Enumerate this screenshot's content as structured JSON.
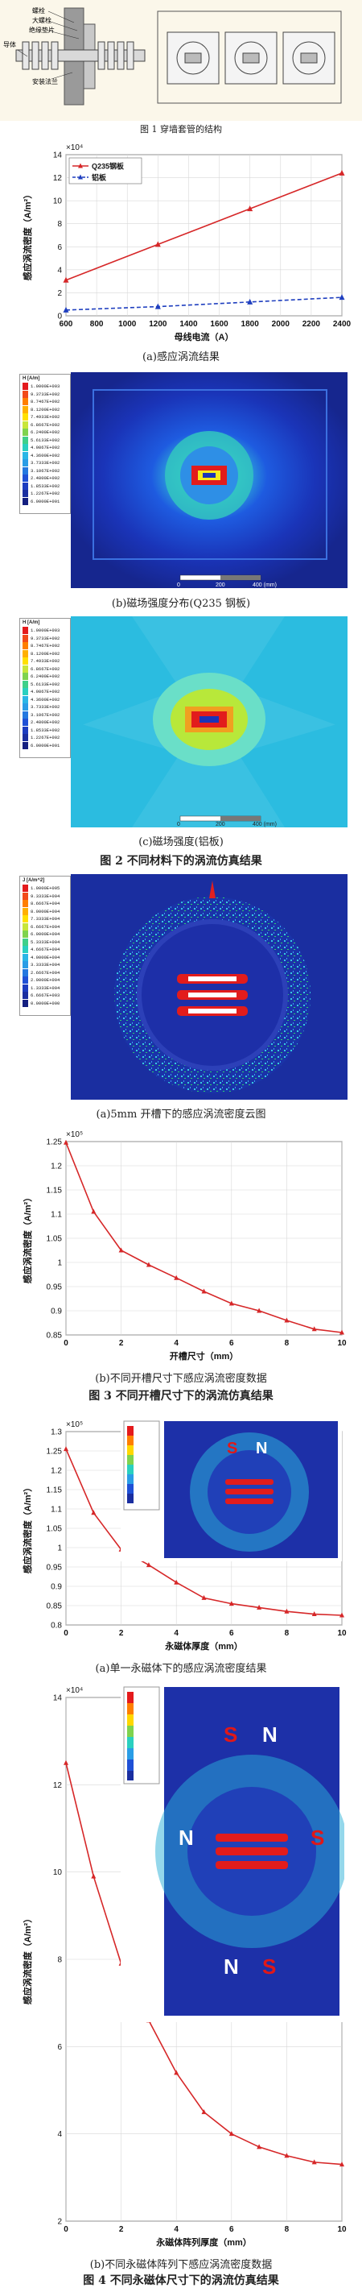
{
  "fig1": {
    "labels": [
      "螺栓",
      "大螺栓",
      "绝缘垫片",
      "导体",
      "安装法兰"
    ],
    "caption": "图 1 穿墙套管的结构"
  },
  "fig2": {
    "caption_a": "(a)感应涡流结果",
    "caption_b": "(b)磁场强度分布(Q235 钢板)",
    "caption_c": "(c)磁场强度(铝板)",
    "caption": "图 2 不同材料下的涡流仿真结果",
    "legend_b": {
      "unit": "H [A/m]",
      "values": [
        "1.0000E+003",
        "9.3733E+002",
        "8.7467E+002",
        "8.1200E+002",
        "7.4933E+002",
        "6.8667E+002",
        "6.2400E+002",
        "5.6133E+002",
        "4.9867E+002",
        "4.3600E+002",
        "3.7333E+002",
        "3.1067E+002",
        "2.4800E+002",
        "1.8533E+002",
        "1.2267E+002",
        "6.0000E+001"
      ]
    },
    "legend_c": {
      "unit": "H [A/m]",
      "values": [
        "1.0000E+003",
        "9.3733E+002",
        "8.7467E+002",
        "8.1200E+002",
        "7.4933E+002",
        "6.8667E+002",
        "6.2400E+002",
        "5.6133E+002",
        "4.9867E+002",
        "4.3600E+002",
        "3.7333E+002",
        "3.1067E+002",
        "2.4800E+002",
        "1.8533E+002",
        "1.2267E+002",
        "6.0000E+001"
      ]
    },
    "scalebar": {
      "start": "0",
      "mid": "200",
      "end": "400 (mm)"
    }
  },
  "fig3": {
    "caption_a": "(a)5mm 开槽下的感应涡流密度云图",
    "caption_b": "(b)不同开槽尺寸下感应涡流密度数据",
    "caption": "图 3 不同开槽尺寸下的涡流仿真结果",
    "legend": {
      "unit": "J [A/m^2]",
      "values": [
        "1.0000E+005",
        "9.3333E+004",
        "8.6667E+004",
        "8.0000E+004",
        "7.3333E+004",
        "6.6667E+004",
        "6.0000E+004",
        "5.3333E+004",
        "4.6667E+004",
        "4.0000E+004",
        "3.3333E+004",
        "2.6667E+004",
        "2.0000E+004",
        "1.3333E+004",
        "6.6667E+003",
        "0.0000E+000"
      ]
    }
  },
  "fig4": {
    "caption_a": "(a)单一永磁体下的感应涡流密度结果",
    "caption_b": "(b)不同永磁体阵列下感应涡流密度数据",
    "caption": "图 4 不同永磁体尺寸下的涡流仿真结果",
    "magnets_a": [
      "S",
      "N"
    ],
    "magnets_b": [
      "S",
      "N",
      "N",
      "S",
      "N",
      "S"
    ]
  },
  "chart_data": [
    {
      "type": "line",
      "xlabel": "母线电流（A）",
      "ylabel": "感应涡流密度（A/m²）",
      "y_exponent": "×10⁴",
      "x": [
        600,
        1200,
        1800,
        2400
      ],
      "xlim": [
        600,
        2400
      ],
      "ylim": [
        0,
        14
      ],
      "xticks": [
        "600",
        "800",
        "1000",
        "1200",
        "1400",
        "1600",
        "1800",
        "2000",
        "2200",
        "2400"
      ],
      "yticks": [
        "0",
        "2",
        "4",
        "6",
        "8",
        "10",
        "12",
        "14"
      ],
      "grid": true,
      "legend_position": "top-left",
      "series": [
        {
          "name": "Q235钢板",
          "values": [
            3.1,
            6.2,
            9.3,
            12.4
          ],
          "color": "#d62728"
        },
        {
          "name": "铝板",
          "values": [
            0.5,
            0.8,
            1.2,
            1.6
          ],
          "color": "#1f3fbf"
        }
      ]
    },
    {
      "type": "line",
      "xlabel": "开槽尺寸（mm）",
      "ylabel": "感应涡流密度（A/m²）",
      "y_exponent": "×10⁵",
      "x": [
        0,
        1,
        2,
        3,
        4,
        5,
        6,
        7,
        8,
        9,
        10
      ],
      "xlim": [
        0,
        10
      ],
      "ylim": [
        0.85,
        1.25
      ],
      "xticks": [
        "0",
        "2",
        "4",
        "6",
        "8",
        "10"
      ],
      "yticks": [
        "0.85",
        "0.9",
        "0.95",
        "1",
        "1.05",
        "1.1",
        "1.15",
        "1.2",
        "1.25"
      ],
      "grid": true,
      "series": [
        {
          "values": [
            1.248,
            1.105,
            1.025,
            0.995,
            0.968,
            0.94,
            0.915,
            0.9,
            0.88,
            0.862,
            0.855
          ],
          "color": "#d62728"
        }
      ]
    },
    {
      "type": "line",
      "xlabel": "永磁体厚度（mm）",
      "ylabel": "感应涡流密度（A/m²）",
      "y_exponent": "×10⁵",
      "x": [
        0,
        1,
        2,
        3,
        4,
        5,
        6,
        7,
        8,
        9,
        10
      ],
      "xlim": [
        0,
        10
      ],
      "ylim": [
        0.8,
        1.3
      ],
      "xticks": [
        "0",
        "2",
        "4",
        "6",
        "8",
        "10"
      ],
      "yticks": [
        "0.8",
        "0.85",
        "0.9",
        "0.95",
        "1",
        "1.05",
        "1.1",
        "1.15",
        "1.2",
        "1.25",
        "1.3"
      ],
      "grid": true,
      "series": [
        {
          "values": [
            1.255,
            1.09,
            0.995,
            0.955,
            0.91,
            0.87,
            0.855,
            0.845,
            0.835,
            0.828,
            0.825
          ],
          "color": "#d62728"
        }
      ]
    },
    {
      "type": "line",
      "xlabel": "永磁体阵列厚度（mm）",
      "ylabel": "感应涡流密度（A/m²）",
      "y_exponent": "×10⁴",
      "x": [
        0,
        1,
        2,
        3,
        4,
        5,
        6,
        7,
        8,
        9,
        10
      ],
      "xlim": [
        0,
        10
      ],
      "ylim": [
        2,
        14
      ],
      "xticks": [
        "0",
        "2",
        "4",
        "6",
        "8",
        "10"
      ],
      "yticks": [
        "2",
        "4",
        "6",
        "8",
        "10",
        "12",
        "14"
      ],
      "grid": true,
      "series": [
        {
          "values": [
            12.5,
            9.9,
            7.9,
            6.6,
            5.4,
            4.5,
            4.0,
            3.7,
            3.5,
            3.35,
            3.3
          ],
          "color": "#d62728"
        }
      ]
    }
  ]
}
